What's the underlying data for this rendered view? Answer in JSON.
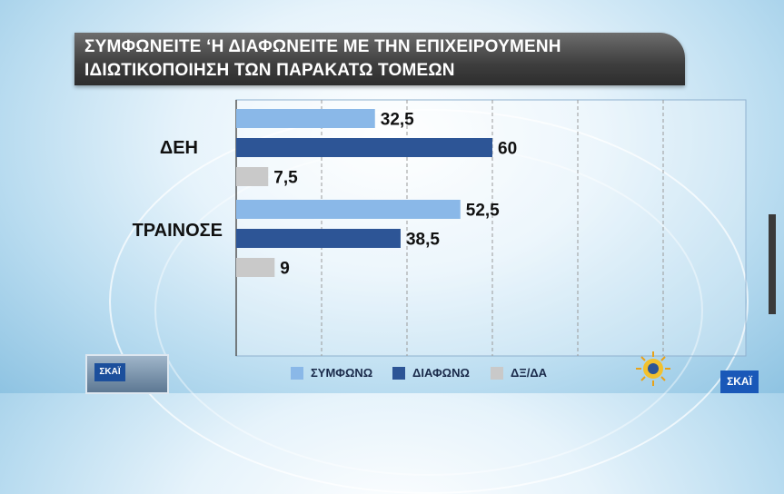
{
  "title": {
    "line1": "ΣΥΜΦΩΝΕΙΤΕ ‘Η ΔΙΑΦΩΝΕΙΤΕ ΜΕ ΤΗΝ ΕΠΙΧΕΙΡΟΥΜΕΝΗ",
    "line2": "ΙΔΙΩΤΙΚΟΠΟΙΗΣΗ ΤΩΝ ΠΑΡΑΚΑΤΩ ΤΟΜΕΩΝ"
  },
  "branding": {
    "corner_logo": "ΣΚΑΪ",
    "watermark": "ΣΚΑΪ"
  },
  "chart_data": {
    "type": "bar",
    "orientation": "horizontal",
    "title": "ΣΥΜΦΩΝΕΙΤΕ ‘Η ΔΙΑΦΩΝΕΙΤΕ ΜΕ ΤΗΝ ΕΠΙΧΕΙΡΟΥΜΕΝΗ ΙΔΙΩΤΙΚΟΠΟΙΗΣΗ ΤΩΝ ΠΑΡΑΚΑΤΩ ΤΟΜΕΩΝ",
    "categories": [
      "ΔΕΗ",
      "ΤΡΑΙΝΟΣΕ"
    ],
    "series": [
      {
        "name": "ΣΥΜΦΩΝΩ",
        "color": "#8ab8e8",
        "values": [
          32.5,
          52.5
        ],
        "labels": [
          "32,5",
          "52,5"
        ]
      },
      {
        "name": "ΔΙΑΦΩΝΩ",
        "color": "#2d5596",
        "values": [
          60,
          38.5
        ],
        "labels": [
          "60",
          "38,5"
        ]
      },
      {
        "name": "ΔΞ/ΔΑ",
        "color": "#c9c9c9",
        "values": [
          7.5,
          9
        ],
        "labels": [
          "7,5",
          "9"
        ]
      }
    ],
    "xlim": [
      0,
      100
    ],
    "grid": true,
    "legend_position": "bottom"
  }
}
